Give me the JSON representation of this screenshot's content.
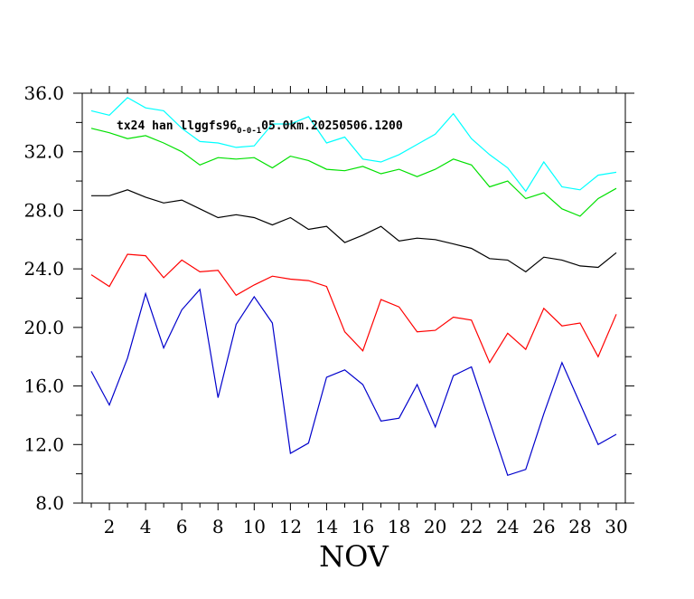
{
  "chart_data": {
    "type": "line",
    "xlabel": "NOV",
    "ylabel": "",
    "xlim": [
      0.5,
      30.5
    ],
    "ylim": [
      8.0,
      36.0
    ],
    "x_ticks": [
      2,
      4,
      6,
      8,
      10,
      12,
      14,
      16,
      18,
      20,
      22,
      24,
      26,
      28,
      30
    ],
    "y_ticks": [
      "8.0",
      "12.0",
      "16.0",
      "20.0",
      "24.0",
      "28.0",
      "32.0",
      "36.0"
    ],
    "grid": false,
    "annotation": {
      "prefix": "tx24 han llggfs96",
      "subscript": "0-0-1",
      "suffix": "05.0km.20250506.1200"
    },
    "x": [
      1,
      2,
      3,
      4,
      5,
      6,
      7,
      8,
      9,
      10,
      11,
      12,
      13,
      14,
      15,
      16,
      17,
      18,
      19,
      20,
      21,
      22,
      23,
      24,
      25,
      26,
      27,
      28,
      29,
      30
    ],
    "series": [
      {
        "color": "#00ffff",
        "values": [
          34.8,
          34.5,
          35.7,
          35.0,
          34.8,
          33.6,
          32.7,
          32.6,
          32.3,
          32.4,
          33.9,
          33.9,
          34.4,
          32.6,
          33.0,
          31.5,
          31.3,
          31.8,
          32.5,
          33.2,
          34.6,
          32.9,
          31.8,
          30.9,
          29.3,
          31.3,
          29.6,
          29.4,
          30.4,
          30.6
        ]
      },
      {
        "color": "#00e000",
        "values": [
          33.6,
          33.3,
          32.9,
          33.1,
          32.6,
          32.0,
          31.1,
          31.6,
          31.5,
          31.6,
          30.9,
          31.7,
          31.4,
          30.8,
          30.7,
          31.0,
          30.5,
          30.8,
          30.3,
          30.8,
          31.5,
          31.1,
          29.6,
          30.0,
          28.8,
          29.2,
          28.1,
          27.6,
          28.8,
          29.5
        ]
      },
      {
        "color": "#000000",
        "values": [
          29.0,
          29.0,
          29.4,
          28.9,
          28.5,
          28.7,
          28.1,
          27.5,
          27.7,
          27.5,
          27.0,
          27.5,
          26.7,
          26.9,
          25.8,
          26.3,
          26.9,
          25.9,
          26.1,
          26.0,
          25.7,
          25.4,
          24.7,
          24.6,
          23.8,
          24.8,
          24.6,
          24.2,
          24.1,
          25.1
        ]
      },
      {
        "color": "#ff0000",
        "values": [
          23.6,
          22.8,
          25.0,
          24.9,
          23.4,
          24.6,
          23.8,
          23.9,
          22.2,
          22.9,
          23.5,
          23.3,
          23.2,
          22.8,
          19.7,
          18.4,
          21.9,
          21.4,
          19.7,
          19.8,
          20.7,
          20.5,
          17.6,
          19.6,
          18.5,
          21.3,
          20.1,
          20.3,
          18.0,
          20.9
        ]
      },
      {
        "color": "#0000cc",
        "values": [
          17.0,
          14.7,
          17.9,
          22.3,
          18.6,
          21.2,
          22.6,
          15.2,
          20.2,
          22.1,
          20.3,
          11.4,
          12.1,
          16.6,
          17.1,
          16.1,
          13.6,
          13.8,
          16.1,
          13.2,
          16.7,
          17.3,
          13.6,
          9.9,
          10.3,
          14.1,
          17.6,
          14.8,
          12.0,
          12.7
        ]
      }
    ]
  }
}
